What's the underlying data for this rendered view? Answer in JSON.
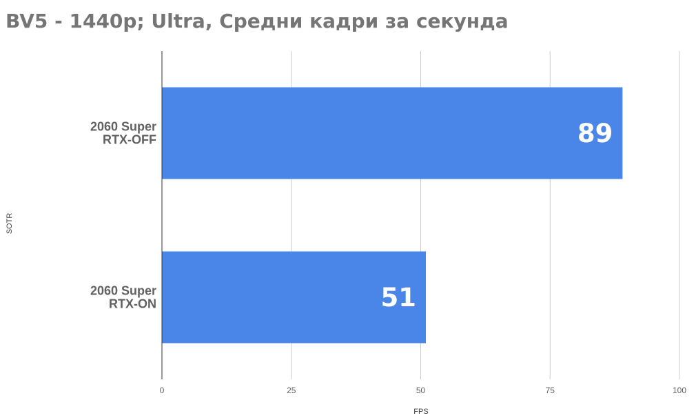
{
  "chart_data": {
    "type": "bar",
    "orientation": "horizontal",
    "title": "BV5 - 1440p; Ultra, Средни кадри за секунда",
    "xlabel": "FPS",
    "ylabel": "SOTR",
    "categories": [
      [
        "2060 Super",
        "RTX-OFF"
      ],
      [
        "2060 Super",
        "RTX-ON"
      ]
    ],
    "values": [
      89,
      51
    ],
    "data_labels": [
      "89",
      "51"
    ],
    "xlim": [
      0,
      100
    ],
    "xticks": [
      "0",
      "25",
      "50",
      "75",
      "100"
    ],
    "grid": true,
    "legend": "none",
    "bar_color": "#4a86e8"
  }
}
